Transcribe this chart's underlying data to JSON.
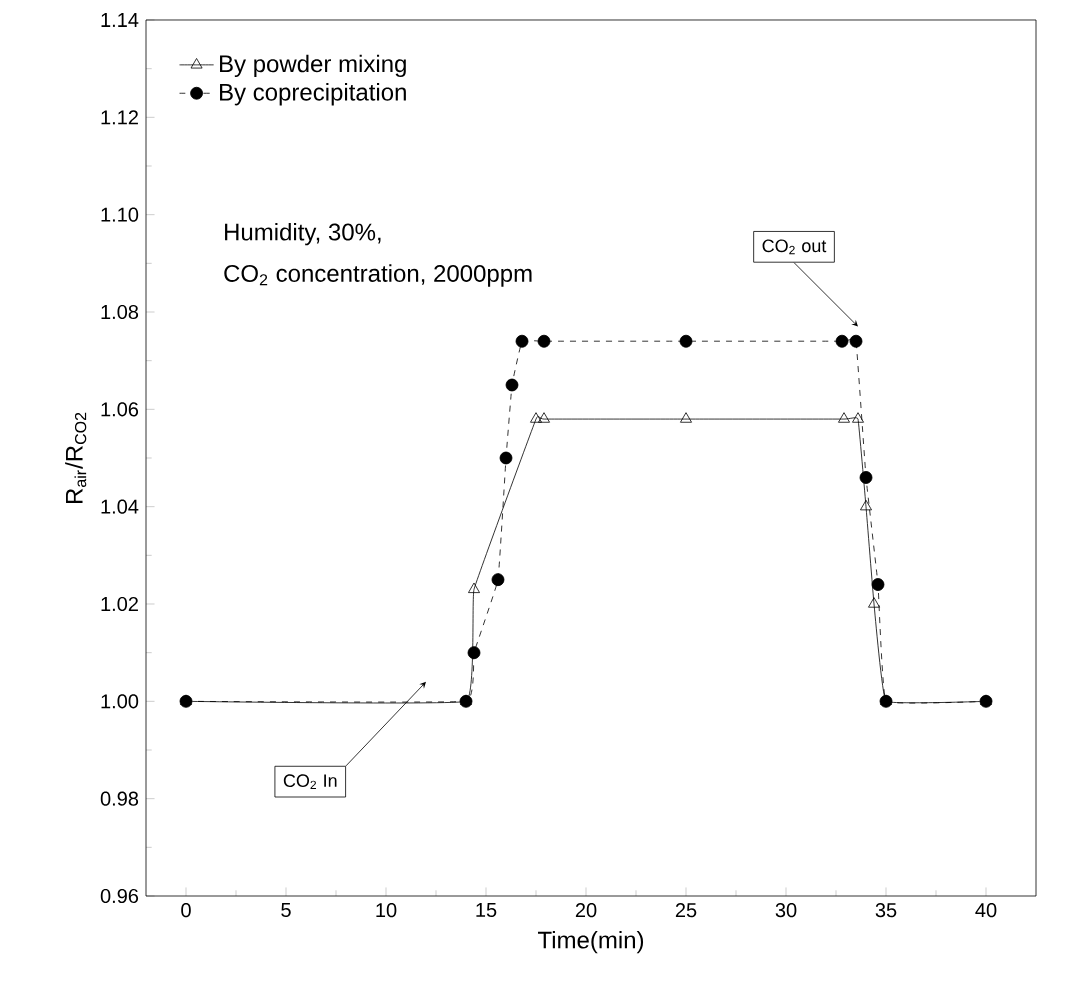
{
  "chart_data": {
    "type": "line",
    "xlabel": "Time(min)",
    "ylabel": "R$_{air}$/R$_{CO2}$",
    "xlim": [
      -2,
      42.5
    ],
    "ylim": [
      0.96,
      1.14
    ],
    "xticks": [
      0,
      5,
      10,
      15,
      20,
      25,
      30,
      35,
      40
    ],
    "yticks": [
      {
        "value": 0.96,
        "label": "0.96"
      },
      {
        "value": 0.98,
        "label": "0.98"
      },
      {
        "value": 1.0,
        "label": "1.00"
      },
      {
        "value": 1.02,
        "label": "1.02"
      },
      {
        "value": 1.04,
        "label": "1.04"
      },
      {
        "value": 1.06,
        "label": "1.06"
      },
      {
        "value": 1.08,
        "label": "1.08"
      },
      {
        "value": 1.1,
        "label": "1.10"
      },
      {
        "value": 1.12,
        "label": "1.12"
      },
      {
        "value": 1.14,
        "label": "1.14"
      }
    ],
    "grid": false,
    "legend": "top left",
    "series": [
      {
        "name": "By powder mixing",
        "color": "#000000",
        "marker": "triangle",
        "line_style": "solid",
        "x": [
          0,
          14,
          14.4,
          17.5,
          17.9,
          25,
          32.9,
          33.6,
          34,
          34.4,
          35,
          40
        ],
        "values": [
          1.0,
          1.0,
          1.023,
          1.058,
          1.058,
          1.058,
          1.058,
          1.058,
          1.04,
          1.02,
          1.0,
          1.0
        ]
      },
      {
        "name": "By coprecipitation",
        "color": "#000000",
        "marker": "circle",
        "line_style": "dashed",
        "x": [
          0,
          14,
          14.4,
          15.6,
          16,
          16.3,
          16.8,
          17.9,
          25,
          32.8,
          33.5,
          34,
          34.6,
          35,
          40
        ],
        "values": [
          1.0,
          1.0,
          1.01,
          1.025,
          1.05,
          1.065,
          1.074,
          1.074,
          1.074,
          1.074,
          1.074,
          1.046,
          1.024,
          1.0,
          1.0
        ]
      }
    ],
    "annotations": [
      "Humidity,            30%,",
      "CO$_{2}$ concentration, 2000ppm",
      {
        "text": "CO$_{2}$ In",
        "x": 12,
        "y": 1.004
      },
      {
        "text": "CO$_{2}$ out",
        "x": 33.6,
        "y": 1.077
      }
    ]
  }
}
